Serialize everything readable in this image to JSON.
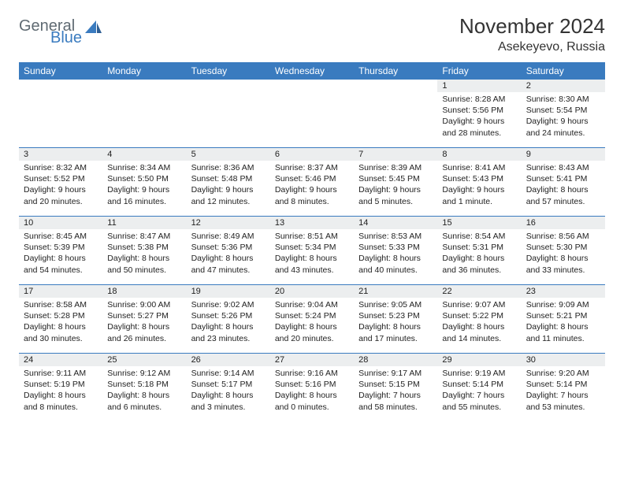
{
  "logo": {
    "word1": "General",
    "word2": "Blue"
  },
  "title": "November 2024",
  "location": "Asekeyevo, Russia",
  "weekdays": [
    "Sunday",
    "Monday",
    "Tuesday",
    "Wednesday",
    "Thursday",
    "Friday",
    "Saturday"
  ],
  "colors": {
    "header_bg": "#3a7bbf",
    "header_text": "#ffffff",
    "daynum_bg": "#eceeef",
    "rule": "#3a7bbf",
    "text": "#222222",
    "logo_gray": "#5f6a72",
    "logo_blue": "#3a7bbf"
  },
  "weeks": [
    [
      {
        "n": "",
        "sunrise": "",
        "sunset": "",
        "day": ""
      },
      {
        "n": "",
        "sunrise": "",
        "sunset": "",
        "day": ""
      },
      {
        "n": "",
        "sunrise": "",
        "sunset": "",
        "day": ""
      },
      {
        "n": "",
        "sunrise": "",
        "sunset": "",
        "day": ""
      },
      {
        "n": "",
        "sunrise": "",
        "sunset": "",
        "day": ""
      },
      {
        "n": "1",
        "sunrise": "Sunrise: 8:28 AM",
        "sunset": "Sunset: 5:56 PM",
        "day": "Daylight: 9 hours and 28 minutes."
      },
      {
        "n": "2",
        "sunrise": "Sunrise: 8:30 AM",
        "sunset": "Sunset: 5:54 PM",
        "day": "Daylight: 9 hours and 24 minutes."
      }
    ],
    [
      {
        "n": "3",
        "sunrise": "Sunrise: 8:32 AM",
        "sunset": "Sunset: 5:52 PM",
        "day": "Daylight: 9 hours and 20 minutes."
      },
      {
        "n": "4",
        "sunrise": "Sunrise: 8:34 AM",
        "sunset": "Sunset: 5:50 PM",
        "day": "Daylight: 9 hours and 16 minutes."
      },
      {
        "n": "5",
        "sunrise": "Sunrise: 8:36 AM",
        "sunset": "Sunset: 5:48 PM",
        "day": "Daylight: 9 hours and 12 minutes."
      },
      {
        "n": "6",
        "sunrise": "Sunrise: 8:37 AM",
        "sunset": "Sunset: 5:46 PM",
        "day": "Daylight: 9 hours and 8 minutes."
      },
      {
        "n": "7",
        "sunrise": "Sunrise: 8:39 AM",
        "sunset": "Sunset: 5:45 PM",
        "day": "Daylight: 9 hours and 5 minutes."
      },
      {
        "n": "8",
        "sunrise": "Sunrise: 8:41 AM",
        "sunset": "Sunset: 5:43 PM",
        "day": "Daylight: 9 hours and 1 minute."
      },
      {
        "n": "9",
        "sunrise": "Sunrise: 8:43 AM",
        "sunset": "Sunset: 5:41 PM",
        "day": "Daylight: 8 hours and 57 minutes."
      }
    ],
    [
      {
        "n": "10",
        "sunrise": "Sunrise: 8:45 AM",
        "sunset": "Sunset: 5:39 PM",
        "day": "Daylight: 8 hours and 54 minutes."
      },
      {
        "n": "11",
        "sunrise": "Sunrise: 8:47 AM",
        "sunset": "Sunset: 5:38 PM",
        "day": "Daylight: 8 hours and 50 minutes."
      },
      {
        "n": "12",
        "sunrise": "Sunrise: 8:49 AM",
        "sunset": "Sunset: 5:36 PM",
        "day": "Daylight: 8 hours and 47 minutes."
      },
      {
        "n": "13",
        "sunrise": "Sunrise: 8:51 AM",
        "sunset": "Sunset: 5:34 PM",
        "day": "Daylight: 8 hours and 43 minutes."
      },
      {
        "n": "14",
        "sunrise": "Sunrise: 8:53 AM",
        "sunset": "Sunset: 5:33 PM",
        "day": "Daylight: 8 hours and 40 minutes."
      },
      {
        "n": "15",
        "sunrise": "Sunrise: 8:54 AM",
        "sunset": "Sunset: 5:31 PM",
        "day": "Daylight: 8 hours and 36 minutes."
      },
      {
        "n": "16",
        "sunrise": "Sunrise: 8:56 AM",
        "sunset": "Sunset: 5:30 PM",
        "day": "Daylight: 8 hours and 33 minutes."
      }
    ],
    [
      {
        "n": "17",
        "sunrise": "Sunrise: 8:58 AM",
        "sunset": "Sunset: 5:28 PM",
        "day": "Daylight: 8 hours and 30 minutes."
      },
      {
        "n": "18",
        "sunrise": "Sunrise: 9:00 AM",
        "sunset": "Sunset: 5:27 PM",
        "day": "Daylight: 8 hours and 26 minutes."
      },
      {
        "n": "19",
        "sunrise": "Sunrise: 9:02 AM",
        "sunset": "Sunset: 5:26 PM",
        "day": "Daylight: 8 hours and 23 minutes."
      },
      {
        "n": "20",
        "sunrise": "Sunrise: 9:04 AM",
        "sunset": "Sunset: 5:24 PM",
        "day": "Daylight: 8 hours and 20 minutes."
      },
      {
        "n": "21",
        "sunrise": "Sunrise: 9:05 AM",
        "sunset": "Sunset: 5:23 PM",
        "day": "Daylight: 8 hours and 17 minutes."
      },
      {
        "n": "22",
        "sunrise": "Sunrise: 9:07 AM",
        "sunset": "Sunset: 5:22 PM",
        "day": "Daylight: 8 hours and 14 minutes."
      },
      {
        "n": "23",
        "sunrise": "Sunrise: 9:09 AM",
        "sunset": "Sunset: 5:21 PM",
        "day": "Daylight: 8 hours and 11 minutes."
      }
    ],
    [
      {
        "n": "24",
        "sunrise": "Sunrise: 9:11 AM",
        "sunset": "Sunset: 5:19 PM",
        "day": "Daylight: 8 hours and 8 minutes."
      },
      {
        "n": "25",
        "sunrise": "Sunrise: 9:12 AM",
        "sunset": "Sunset: 5:18 PM",
        "day": "Daylight: 8 hours and 6 minutes."
      },
      {
        "n": "26",
        "sunrise": "Sunrise: 9:14 AM",
        "sunset": "Sunset: 5:17 PM",
        "day": "Daylight: 8 hours and 3 minutes."
      },
      {
        "n": "27",
        "sunrise": "Sunrise: 9:16 AM",
        "sunset": "Sunset: 5:16 PM",
        "day": "Daylight: 8 hours and 0 minutes."
      },
      {
        "n": "28",
        "sunrise": "Sunrise: 9:17 AM",
        "sunset": "Sunset: 5:15 PM",
        "day": "Daylight: 7 hours and 58 minutes."
      },
      {
        "n": "29",
        "sunrise": "Sunrise: 9:19 AM",
        "sunset": "Sunset: 5:14 PM",
        "day": "Daylight: 7 hours and 55 minutes."
      },
      {
        "n": "30",
        "sunrise": "Sunrise: 9:20 AM",
        "sunset": "Sunset: 5:14 PM",
        "day": "Daylight: 7 hours and 53 minutes."
      }
    ]
  ]
}
